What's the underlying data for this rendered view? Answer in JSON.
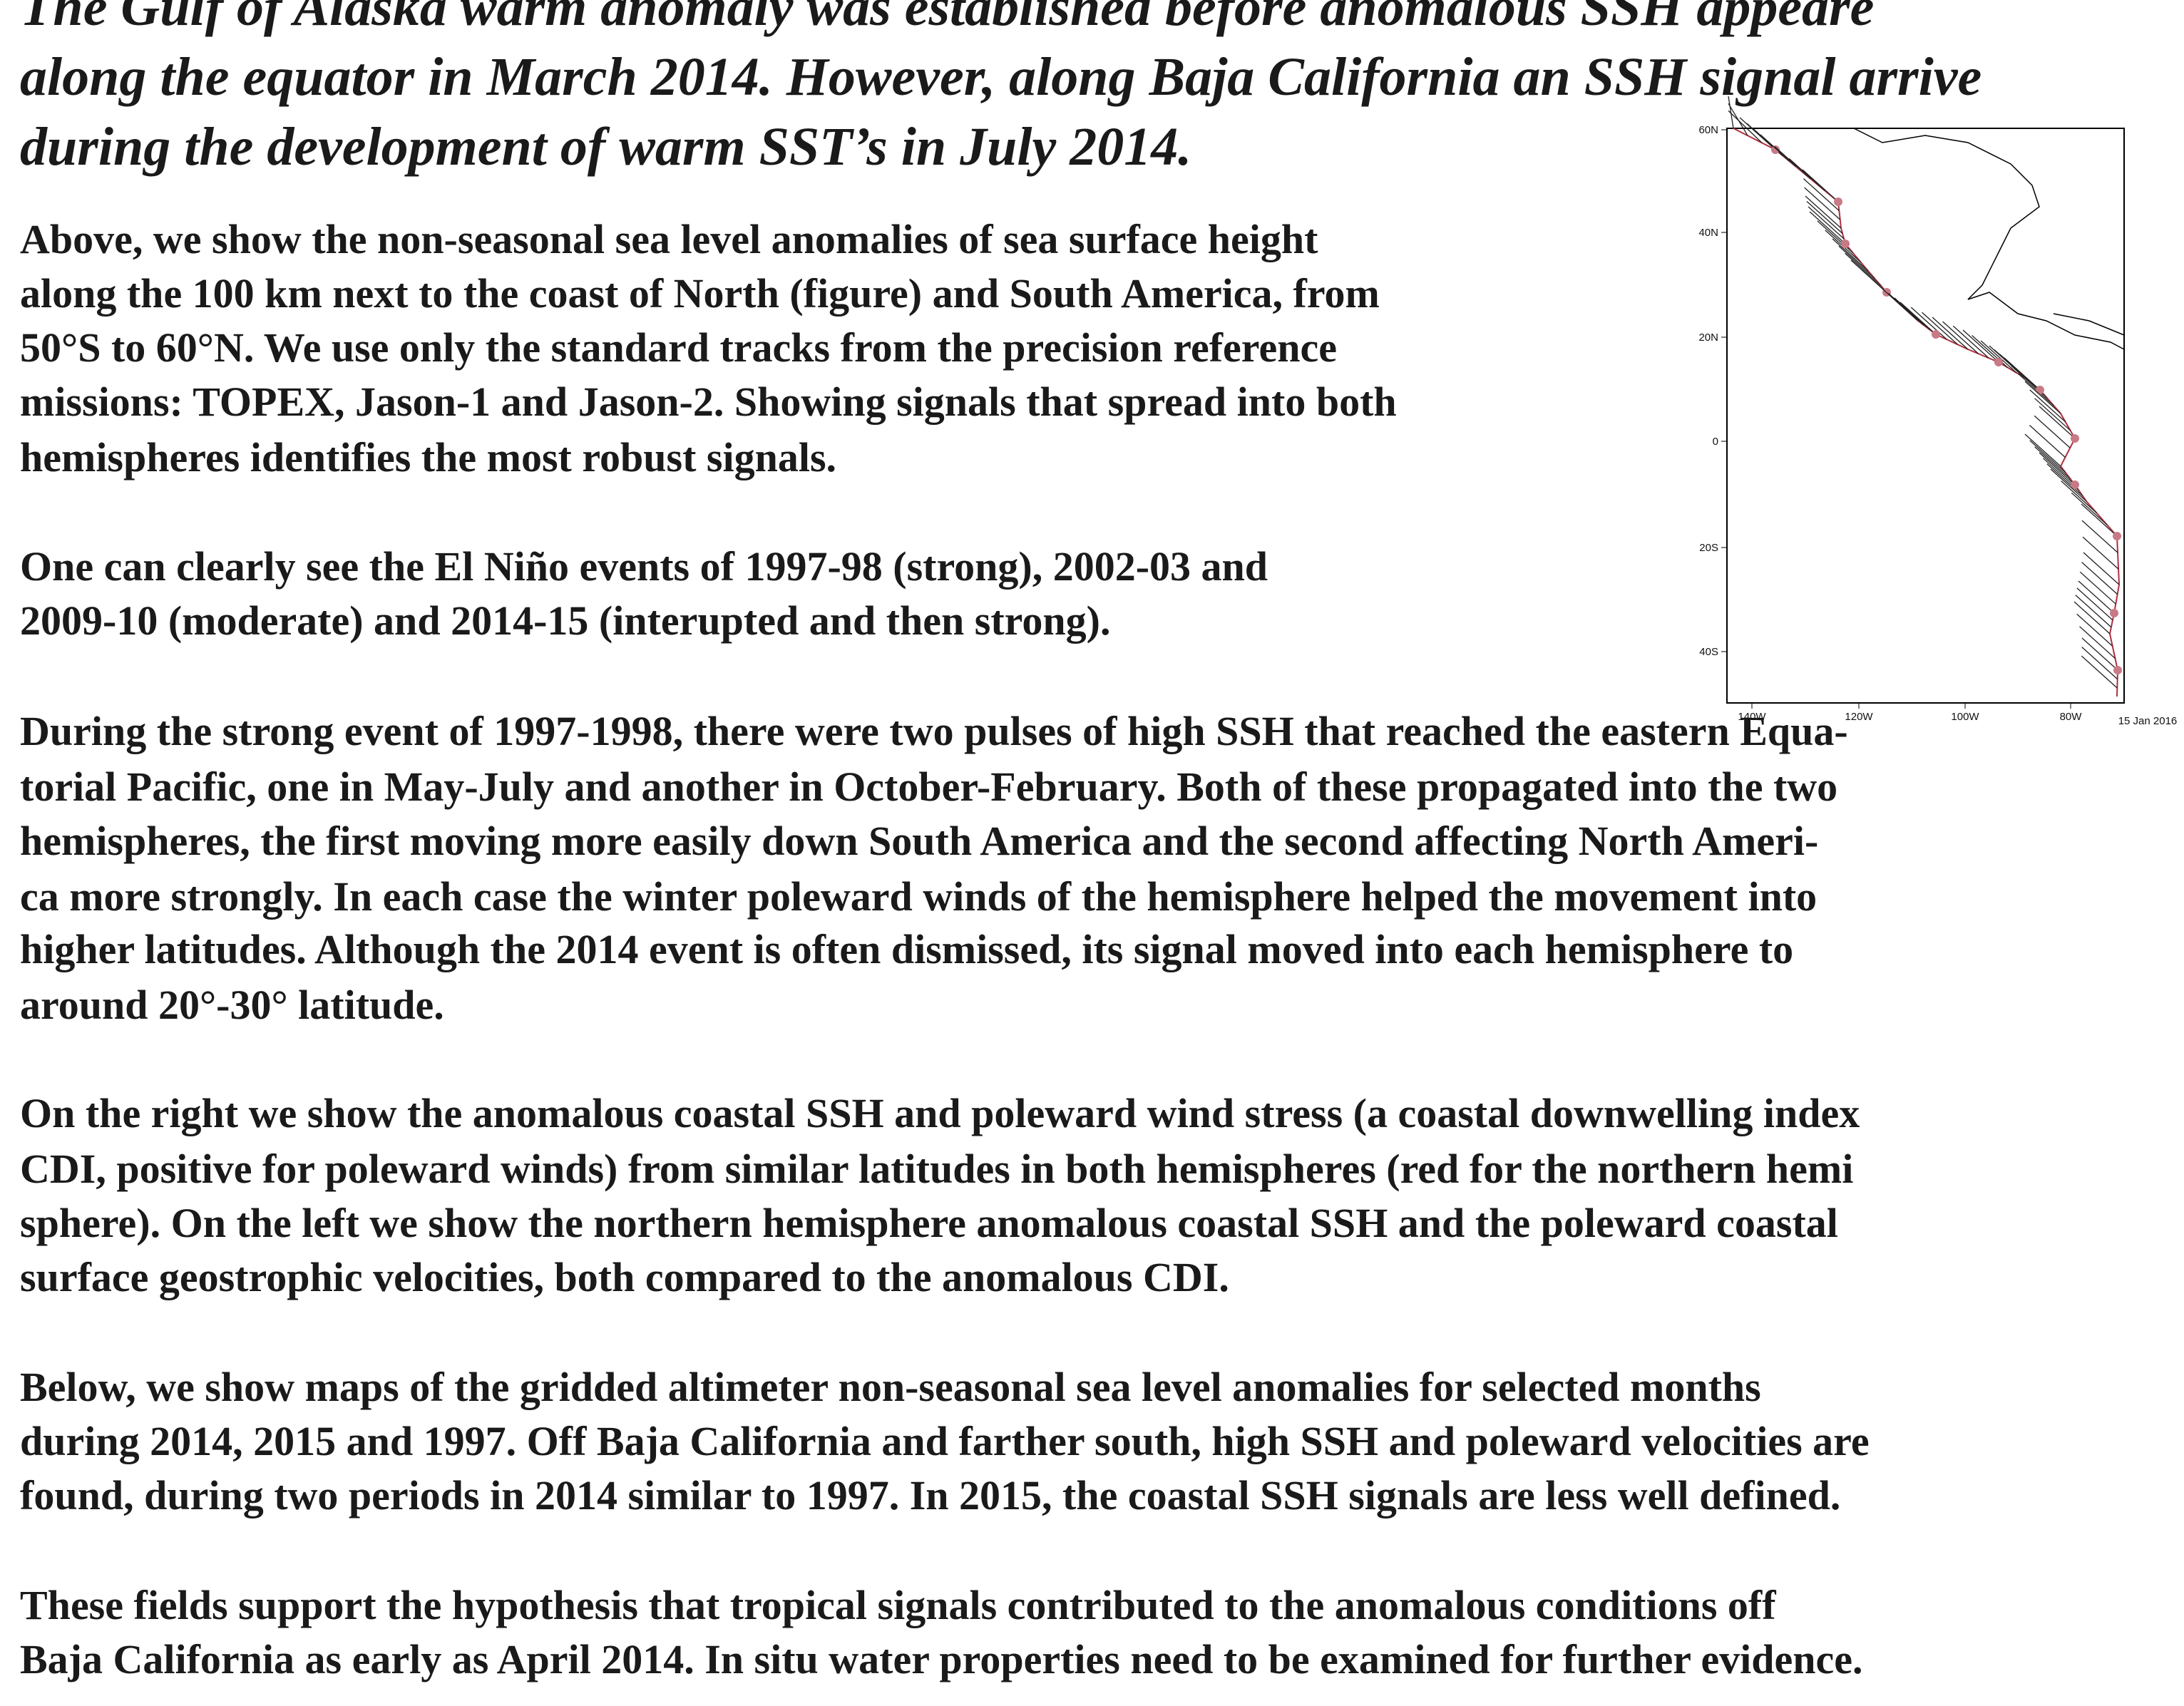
{
  "heading_lines": [
    "The Gulf of Alaska warm anomaly was established before anomalous SSH appeare",
    "along the equator in March 2014. However, along Baja California an SSH signal arrive",
    "during the development of warm SST’s in July 2014."
  ],
  "paragraphs": [
    [
      "Above, we show the non-seasonal sea level anomalies of sea surface height",
      "along the 100 km next to the coast of North (figure) and South America, from",
      "50°S to 60°N. We use only the standard tracks from the precision reference",
      "missions: TOPEX, Jason-1 and Jason-2. Showing signals that spread into both",
      "hemispheres identifies the most robust signals."
    ],
    [
      "One can clearly see the El Niño events of 1997-98 (strong), 2002-03 and",
      "2009-10 (moderate) and 2014-15 (interupted and then strong)."
    ],
    [
      "During the strong event of 1997-1998, there were two pulses of high SSH that reached the eastern Equa-",
      "torial Pacific, one in May-July and another in October-February. Both of these propagated into the two",
      "hemispheres, the first moving more easily down South America and the second affecting North Ameri-",
      "ca more strongly. In each case the winter poleward winds of the hemisphere helped the movement into",
      "higher latitudes. Although the 2014 event is often dismissed, its signal moved into each hemisphere to",
      "around 20°-30° latitude."
    ],
    [
      "On the right we show the anomalous coastal SSH and poleward wind stress (a coastal downwelling index",
      "CDI, positive for poleward winds) from similar latitudes in both hemispheres (red for the northern hemi",
      "sphere). On the left we show the northern hemisphere anomalous coastal SSH and the poleward coastal",
      "surface geostrophic velocities, both compared to the anomalous CDI."
    ],
    [
      "Below, we show maps of the gridded altimeter non-seasonal sea level anomalies for selected months",
      "during 2014, 2015 and 1997. Off Baja California and farther south, high SSH and poleward velocities are",
      "found, during two periods in 2014 similar to 1997. In 2015, the coastal SSH signals are less well defined."
    ],
    [
      "These fields support the hypothesis that tropical signals contributed to the anomalous conditions off",
      "Baja California as early as April 2014. In situ water properties need to be examined for further evidence."
    ]
  ],
  "figure": {
    "lat_labels": [
      "60N",
      "40N",
      "20N",
      "0",
      "20S",
      "40S"
    ],
    "lon_labels": [
      "140W",
      "120W",
      "100W",
      "80W"
    ],
    "date": "15 Jan 2016"
  }
}
